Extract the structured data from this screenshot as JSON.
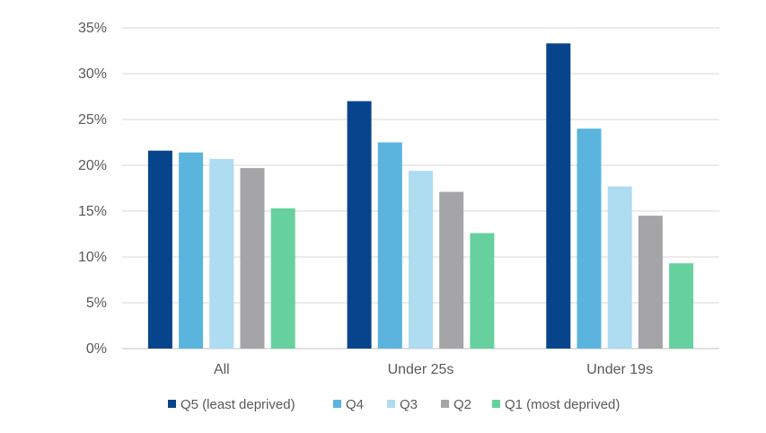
{
  "chart_data": {
    "type": "bar",
    "title": "",
    "xlabel": "",
    "ylabel": "",
    "categories": [
      "All",
      "Under 25s",
      "Under 19s"
    ],
    "series": [
      {
        "name": "Q5 (least deprived)",
        "color": "#08448c",
        "values": [
          21.6,
          27.0,
          33.3
        ]
      },
      {
        "name": "Q4",
        "color": "#5ab4de",
        "values": [
          21.4,
          22.5,
          24.0
        ]
      },
      {
        "name": "Q3",
        "color": "#aedcf0",
        "values": [
          20.7,
          19.4,
          17.7
        ]
      },
      {
        "name": "Q2",
        "color": "#a5a5a7",
        "values": [
          19.7,
          17.1,
          14.5
        ]
      },
      {
        "name": "Q1 (most deprived)",
        "color": "#66d19e",
        "values": [
          15.3,
          12.6,
          9.3
        ]
      }
    ],
    "ylim": [
      0,
      35
    ],
    "yticks": [
      "0%",
      "5%",
      "10%",
      "15%",
      "20%",
      "25%",
      "30%",
      "35%"
    ],
    "ytick_values": [
      0,
      5,
      10,
      15,
      20,
      25,
      30,
      35
    ],
    "grid": true,
    "legend_position": "bottom"
  }
}
